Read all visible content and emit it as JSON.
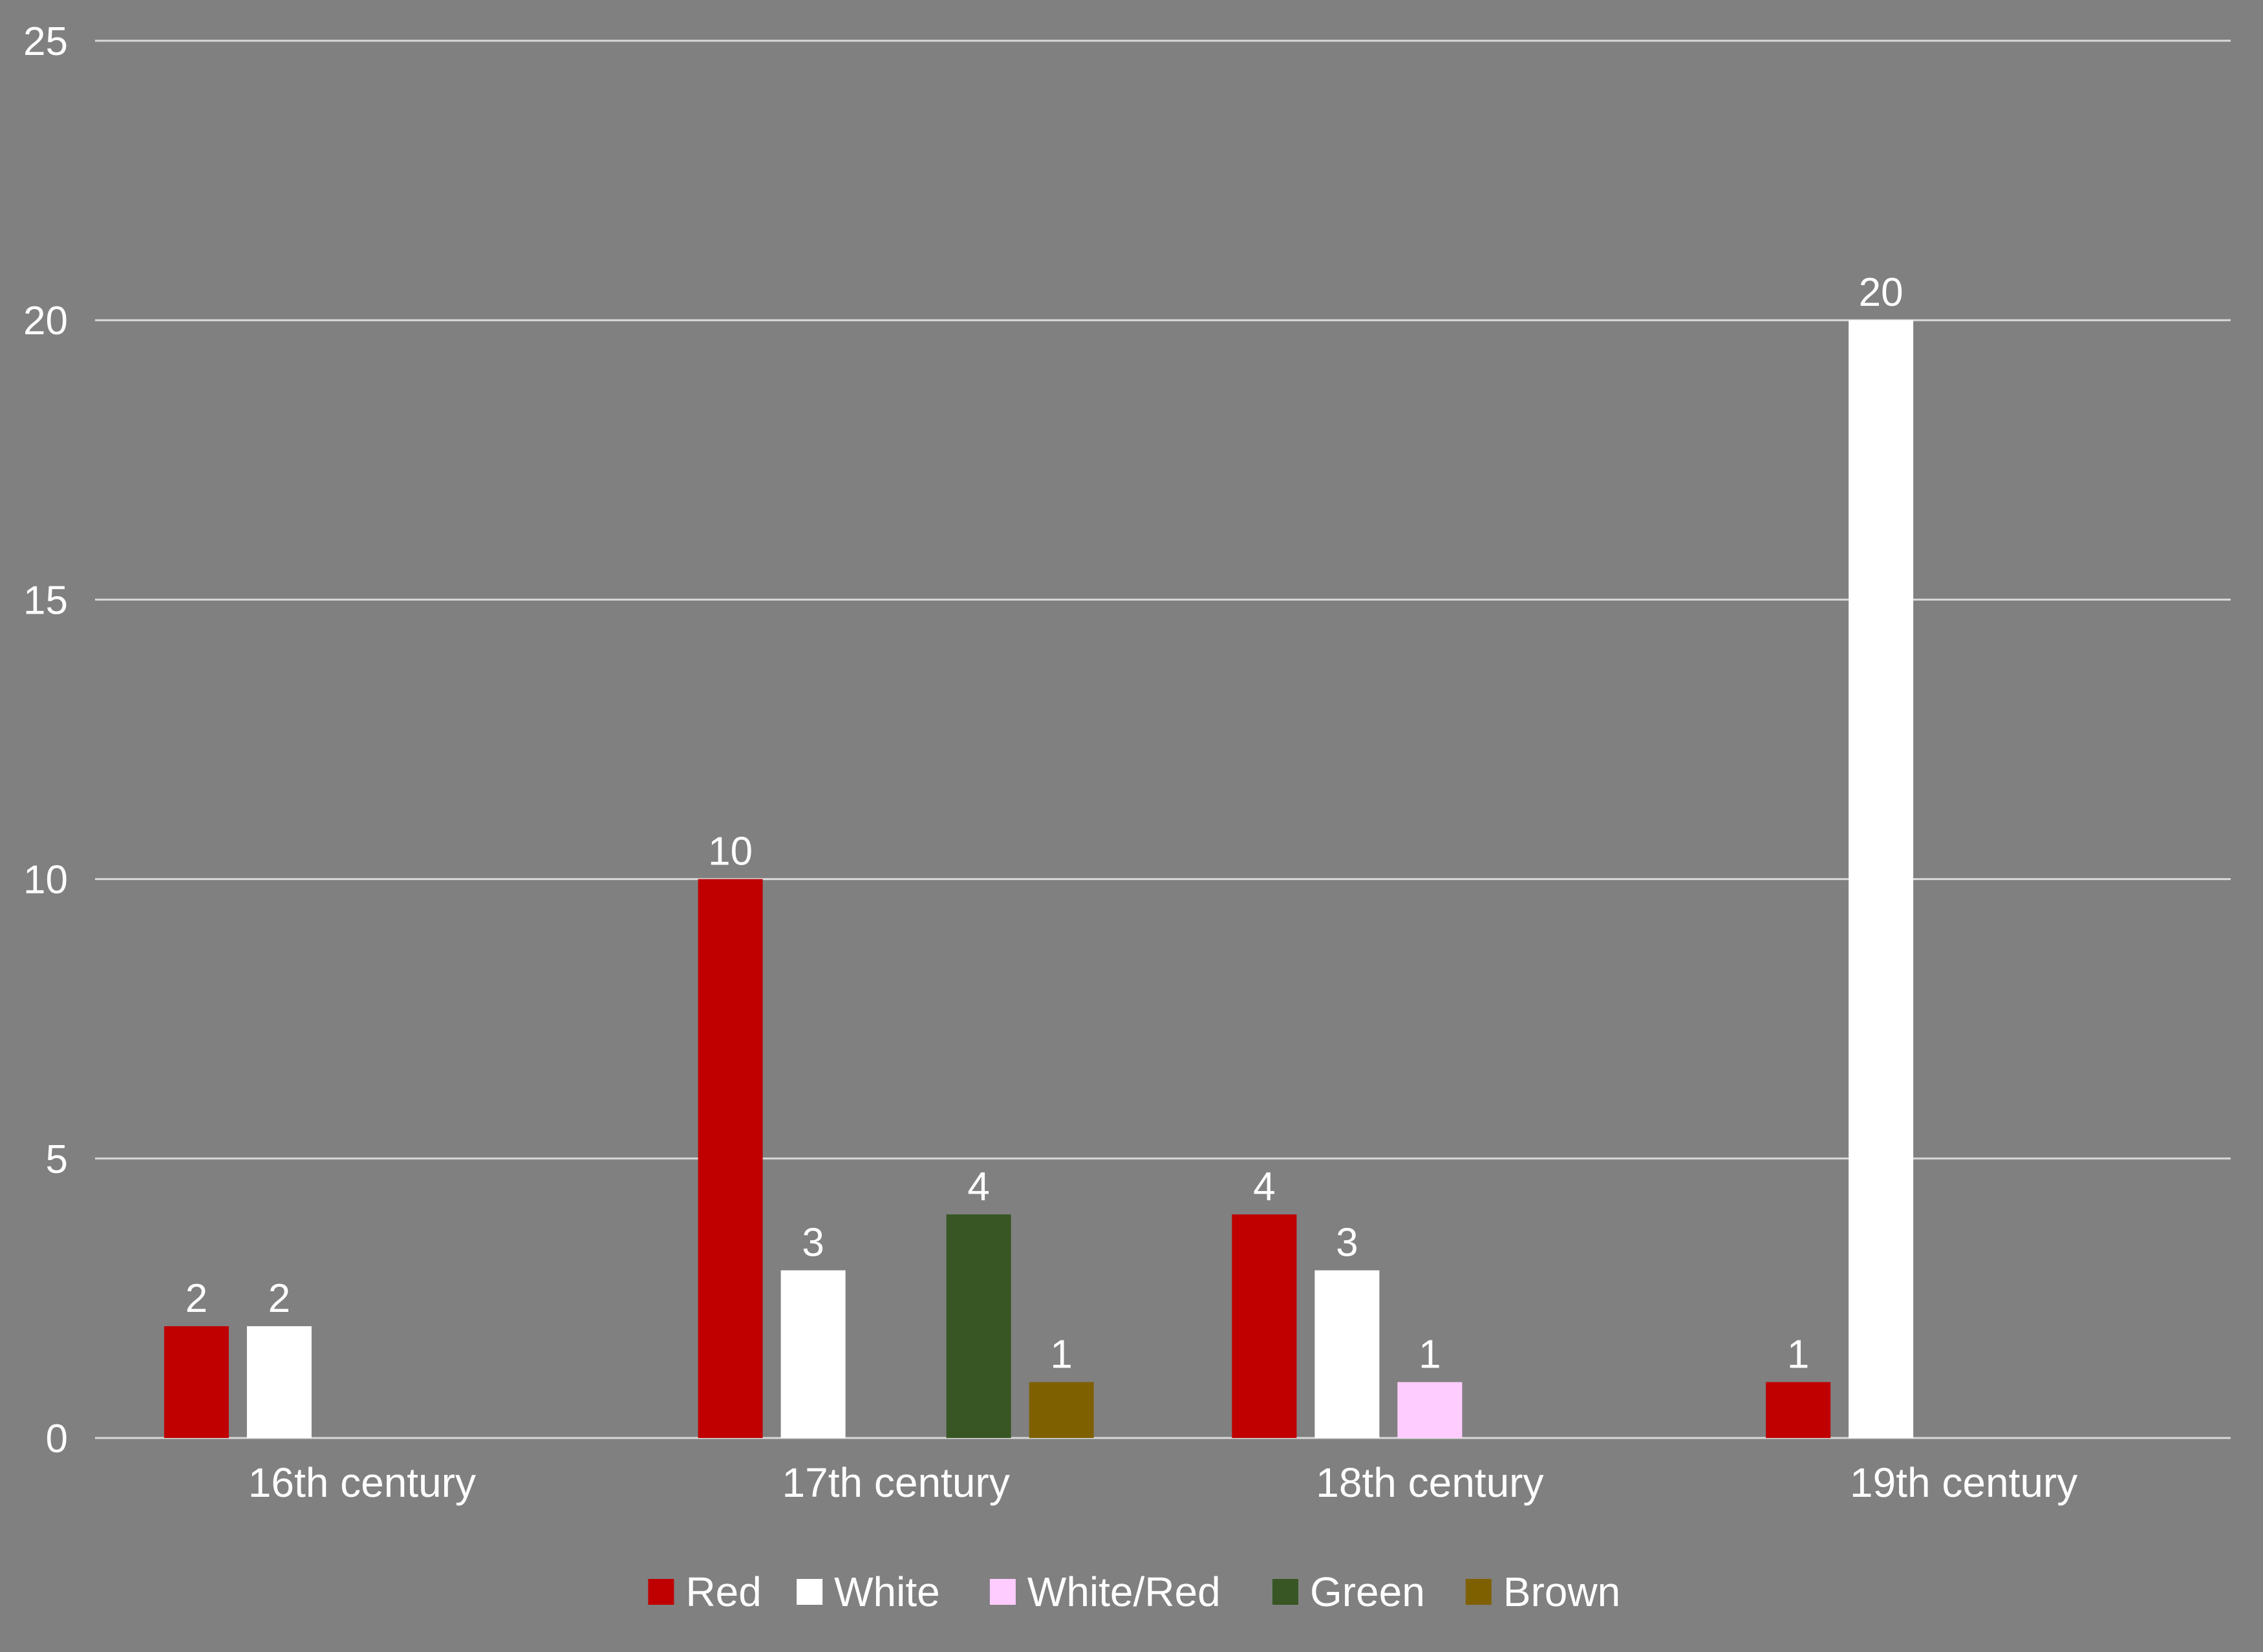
{
  "chart_data": {
    "type": "bar",
    "title": "",
    "xlabel": "",
    "ylabel": "",
    "ylim": [
      0,
      25
    ],
    "yticks": [
      0,
      5,
      10,
      15,
      20,
      25
    ],
    "grid": true,
    "legend_position": "bottom",
    "categories": [
      "16th century",
      "17th century",
      "18th century",
      "19th century"
    ],
    "series": [
      {
        "name": "Red",
        "color": "#C00000",
        "values": [
          2,
          10,
          4,
          1
        ]
      },
      {
        "name": "White",
        "color": "#FFFFFF",
        "values": [
          2,
          3,
          3,
          20
        ]
      },
      {
        "name": "White/Red",
        "color": "#FFCCFF",
        "values": [
          null,
          null,
          1,
          null
        ]
      },
      {
        "name": "Green",
        "color": "#375623",
        "values": [
          null,
          4,
          null,
          null
        ]
      },
      {
        "name": "Brown",
        "color": "#7F6000",
        "values": [
          null,
          1,
          null,
          null
        ]
      }
    ],
    "colors": {
      "background": "#808080",
      "text": "#FFFFFF",
      "gridline": "#D9D9D9"
    }
  }
}
